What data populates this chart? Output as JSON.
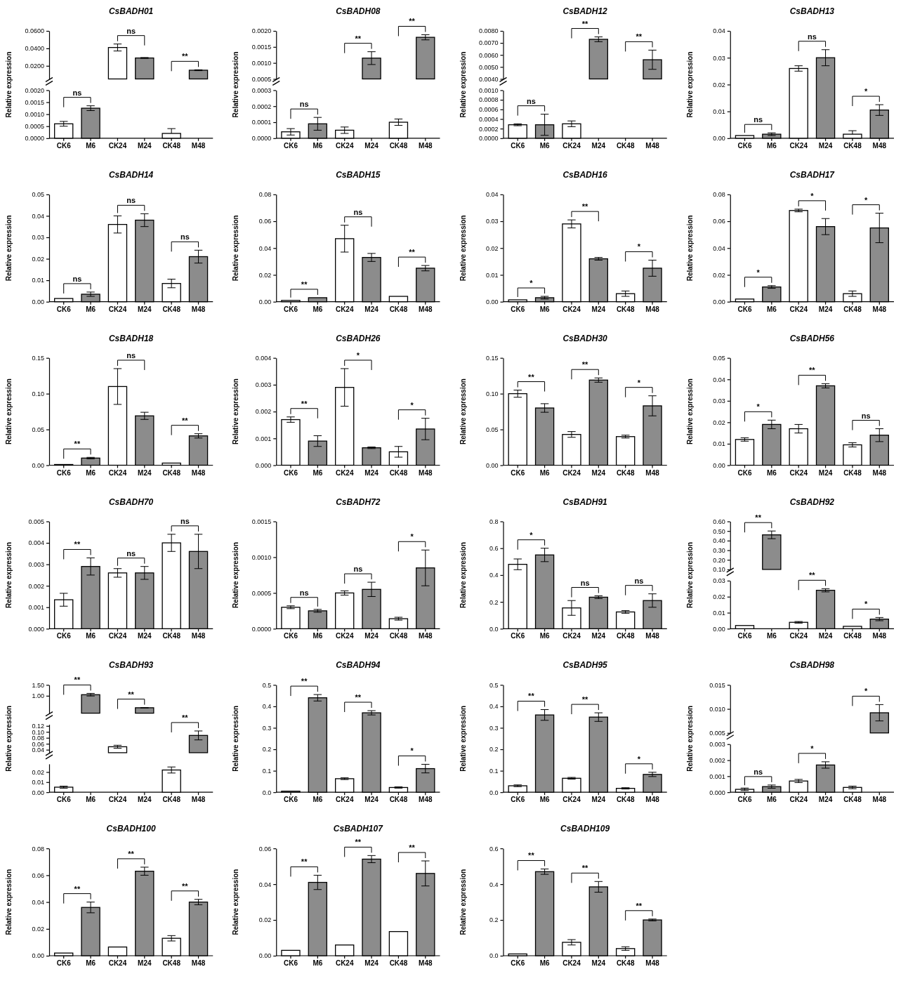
{
  "chart_data": [
    {
      "type": "bar",
      "title": "CsBADH01",
      "tick_labels": "y",
      "categories": [
        "CK6",
        "M6",
        "CK24",
        "M24",
        "CK48",
        "M48"
      ],
      "values": [
        null,
        null,
        0.041,
        0.029,
        null,
        0.015
      ],
      "errors": [
        null,
        null,
        0.004,
        0.0005,
        null,
        0.0005
      ],
      "colors": [
        null,
        null,
        "#ffffff",
        "#8c8c8c",
        null,
        "#8c8c8c"
      ],
      "ylim": [
        0.005,
        0.06
      ],
      "yticks": [
        {
          "value": 0.02,
          "label": "0.0200"
        },
        {
          "value": 0.04,
          "label": "0.0400"
        },
        {
          "value": 0.06,
          "label": "0.0600"
        }
      ]
    },
    {
      "type": "bar",
      "ylabel": "Relative expression",
      "categories": [
        "CK6",
        "M6",
        "CK24",
        "M24",
        "CK48",
        "M48"
      ],
      "values": [
        0.0006,
        0.00125,
        null,
        null,
        0.0002,
        null
      ],
      "errors": [
        0.0001,
        0.0001,
        null,
        null,
        [
          0.0002,
          0.0004
        ],
        null
      ],
      "colors": [
        "#ffffff",
        "#8c8c8c",
        null,
        null,
        "#ffffff",
        null
      ],
      "ylim": [
        0,
        0.002
      ],
      "yticks": [
        {
          "value": 0,
          "label": "0.0000"
        },
        {
          "value": 0.0005,
          "label": "0.0005"
        },
        {
          "value": 0.001,
          "label": "0.0010"
        },
        {
          "value": 0.0015,
          "label": "0.0015"
        },
        {
          "value": 0.002,
          "label": "0.0020"
        }
      ],
      "annotations": [
        "ns",
        "ns",
        "**"
      ]
    },
    {
      "type": "bar",
      "title": "CsBADH08",
      "tick_labels": "y",
      "categories": [
        "CK6",
        "M6",
        "CK24",
        "M24",
        "CK48",
        "M48"
      ],
      "values": [
        null,
        null,
        null,
        0.00115,
        null,
        0.0018
      ],
      "errors": [
        null,
        null,
        null,
        0.0002,
        null,
        8e-05
      ],
      "colors": [
        null,
        null,
        null,
        "#8c8c8c",
        null,
        "#8c8c8c"
      ],
      "ylim": [
        0.0005,
        0.002
      ],
      "yticks": [
        {
          "value": 0.0005,
          "label": "0.0005"
        },
        {
          "value": 0.001,
          "label": "0.0010"
        },
        {
          "value": 0.0015,
          "label": "0.0015"
        },
        {
          "value": 0.002,
          "label": "0.0020"
        }
      ]
    },
    {
      "type": "bar",
      "ylabel": "Relative expression",
      "categories": [
        "CK6",
        "M6",
        "CK24",
        "M24",
        "CK48",
        "M48"
      ],
      "values": [
        4e-05,
        9e-05,
        5e-05,
        null,
        0.0001,
        null
      ],
      "errors": [
        2e-05,
        4e-05,
        2e-05,
        null,
        2e-05,
        null
      ],
      "colors": [
        "#ffffff",
        "#8c8c8c",
        "#ffffff",
        null,
        "#ffffff",
        null
      ],
      "ylim": [
        0,
        0.0003
      ],
      "yticks": [
        {
          "value": 0,
          "label": "0.0000"
        },
        {
          "value": 0.0001,
          "label": "0.0001"
        },
        {
          "value": 0.0002,
          "label": "0.0002"
        },
        {
          "value": 0.0003,
          "label": "0.0003"
        }
      ],
      "annotations": [
        "ns",
        "**",
        "**"
      ]
    },
    {
      "type": "bar",
      "title": "CsBADH12",
      "tick_labels": "y",
      "categories": [
        "CK6",
        "M6",
        "CK24",
        "M24",
        "CK48",
        "M48"
      ],
      "values": [
        null,
        null,
        null,
        0.0073,
        null,
        0.0056
      ],
      "errors": [
        null,
        null,
        null,
        0.0002,
        null,
        0.0008
      ],
      "colors": [
        null,
        null,
        null,
        "#8c8c8c",
        null,
        "#8c8c8c"
      ],
      "ylim": [
        0.004,
        0.008
      ],
      "yticks": [
        {
          "value": 0.004,
          "label": "0.0040"
        },
        {
          "value": 0.005,
          "label": "0.0050"
        },
        {
          "value": 0.006,
          "label": "0.0060"
        },
        {
          "value": 0.007,
          "label": "0.0070"
        },
        {
          "value": 0.008,
          "label": "0.0080"
        }
      ]
    },
    {
      "type": "bar",
      "ylabel": "Relative expression",
      "categories": [
        "CK6",
        "M6",
        "CK24",
        "M24",
        "CK48",
        "M48"
      ],
      "values": [
        0.00028,
        0.00028,
        0.0003,
        null,
        0,
        null
      ],
      "errors": [
        2e-05,
        0.00022,
        6e-05,
        null,
        null,
        null
      ],
      "colors": [
        "#ffffff",
        "#8c8c8c",
        "#ffffff",
        null,
        "#ffffff",
        null
      ],
      "ylim": [
        0,
        0.001
      ],
      "yticks": [
        {
          "value": 0,
          "label": "0.0000"
        },
        {
          "value": 0.0002,
          "label": "0.0002"
        },
        {
          "value": 0.0004,
          "label": "0.0004"
        },
        {
          "value": 0.0006,
          "label": "0.0006"
        },
        {
          "value": 0.0008,
          "label": "0.0008"
        },
        {
          "value": 0.001,
          "label": "0.0010"
        }
      ],
      "annotations": [
        "ns",
        "**",
        "**"
      ]
    },
    {
      "type": "bar",
      "title": "CsBADH13",
      "ylabel": "Relative expression",
      "categories": [
        "CK6",
        "M6",
        "CK24",
        "M24",
        "CK48",
        "M48"
      ],
      "values": [
        0.001,
        0.0015,
        0.026,
        0.03,
        0.0015,
        0.0105
      ],
      "errors": [
        null,
        0.0005,
        0.001,
        0.003,
        [
          0.0015,
          0.0028
        ],
        0.002
      ],
      "colors": [
        "#ffffff",
        "#8c8c8c",
        "#ffffff",
        "#8c8c8c",
        "#ffffff",
        "#8c8c8c"
      ],
      "ylim": [
        0,
        0.04
      ],
      "yticks": [
        {
          "value": 0,
          "label": "0.00"
        },
        0.01,
        0.02,
        0.03,
        0.04
      ],
      "annotations": [
        "ns",
        "ns",
        "*"
      ]
    },
    {
      "type": "bar",
      "title": "CsBADH14",
      "ylabel": "Relative expression",
      "categories": [
        "CK6",
        "M6",
        "CK24",
        "M24",
        "CK48",
        "M48"
      ],
      "values": [
        0.0015,
        0.0035,
        0.036,
        0.038,
        0.0085,
        0.021
      ],
      "errors": [
        null,
        0.001,
        0.004,
        0.003,
        0.002,
        0.003
      ],
      "colors": [
        "#ffffff",
        "#8c8c8c",
        "#ffffff",
        "#8c8c8c",
        "#ffffff",
        "#8c8c8c"
      ],
      "ylim": [
        0,
        0.05
      ],
      "yticks": [
        {
          "value": 0,
          "label": "0.00"
        },
        0.01,
        0.02,
        0.03,
        0.04,
        0.05
      ],
      "annotations": [
        "ns",
        "ns",
        "ns"
      ]
    },
    {
      "type": "bar",
      "title": "CsBADH15",
      "ylabel": "Relative expression",
      "categories": [
        "CK6",
        "M6",
        "CK24",
        "M24",
        "CK48",
        "M48"
      ],
      "values": [
        0.001,
        0.003,
        0.047,
        0.033,
        0.004,
        0.025
      ],
      "errors": [
        null,
        null,
        0.01,
        0.003,
        null,
        0.002
      ],
      "colors": [
        "#ffffff",
        "#8c8c8c",
        "#ffffff",
        "#8c8c8c",
        "#ffffff",
        "#8c8c8c"
      ],
      "ylim": [
        0,
        0.08
      ],
      "yticks": [
        {
          "value": 0,
          "label": "0.00"
        },
        {
          "value": 0.02,
          "label": "0.02"
        },
        {
          "value": 0.04,
          "label": "0.04"
        },
        {
          "value": 0.06,
          "label": "0.06"
        },
        {
          "value": 0.08,
          "label": "0.08"
        }
      ],
      "annotations": [
        "**",
        "ns",
        "**"
      ]
    },
    {
      "type": "bar",
      "title": "CsBADH16",
      "ylabel": "Relative expression",
      "categories": [
        "CK6",
        "M6",
        "CK24",
        "M24",
        "CK48",
        "M48"
      ],
      "values": [
        0.0007,
        0.0015,
        0.029,
        0.016,
        0.003,
        0.0125
      ],
      "errors": [
        null,
        0.0005,
        0.0015,
        0.0005,
        0.001,
        0.003
      ],
      "colors": [
        "#ffffff",
        "#8c8c8c",
        "#ffffff",
        "#8c8c8c",
        "#ffffff",
        "#8c8c8c"
      ],
      "ylim": [
        0,
        0.04
      ],
      "yticks": [
        {
          "value": 0,
          "label": "0.00"
        },
        0.01,
        0.02,
        0.03,
        0.04
      ],
      "annotations": [
        "*",
        "**",
        "*"
      ]
    },
    {
      "type": "bar",
      "title": "CsBADH17",
      "ylabel": "Relative expression",
      "categories": [
        "CK6",
        "M6",
        "CK24",
        "M24",
        "CK48",
        "M48"
      ],
      "values": [
        0.002,
        0.011,
        0.068,
        0.056,
        0.006,
        0.055
      ],
      "errors": [
        null,
        0.001,
        0.001,
        0.006,
        0.002,
        0.011
      ],
      "colors": [
        "#ffffff",
        "#8c8c8c",
        "#ffffff",
        "#8c8c8c",
        "#ffffff",
        "#8c8c8c"
      ],
      "ylim": [
        0,
        0.08
      ],
      "yticks": [
        {
          "value": 0,
          "label": "0.00"
        },
        {
          "value": 0.02,
          "label": "0.02"
        },
        {
          "value": 0.04,
          "label": "0.04"
        },
        {
          "value": 0.06,
          "label": "0.06"
        },
        {
          "value": 0.08,
          "label": "0.08"
        }
      ],
      "annotations": [
        "*",
        "*",
        "*"
      ]
    },
    {
      "type": "bar",
      "title": "CsBADH18",
      "ylabel": "Relative expression",
      "categories": [
        "CK6",
        "M6",
        "CK24",
        "M24",
        "CK48",
        "M48"
      ],
      "values": [
        0.001,
        0.01,
        0.11,
        0.069,
        0.003,
        0.041
      ],
      "errors": [
        null,
        0.001,
        0.025,
        0.005,
        null,
        0.003
      ],
      "colors": [
        "#ffffff",
        "#8c8c8c",
        "#ffffff",
        "#8c8c8c",
        "#ffffff",
        "#8c8c8c"
      ],
      "ylim": [
        0,
        0.15
      ],
      "yticks": [
        {
          "value": 0,
          "label": "0.00"
        },
        0.05,
        {
          "value": 0.1,
          "label": "0.10"
        },
        0.15
      ],
      "annotations": [
        "**",
        "ns",
        "**"
      ]
    },
    {
      "type": "bar",
      "title": "CsBADH26",
      "ylabel": "Relative expression",
      "categories": [
        "CK6",
        "M6",
        "CK24",
        "M24",
        "CK48",
        "M48"
      ],
      "values": [
        0.0017,
        0.0009,
        0.0029,
        0.00065,
        0.0005,
        0.00135
      ],
      "errors": [
        0.0001,
        0.0002,
        0.0007,
        3e-05,
        0.0002,
        0.0004
      ],
      "colors": [
        "#ffffff",
        "#8c8c8c",
        "#ffffff",
        "#8c8c8c",
        "#ffffff",
        "#8c8c8c"
      ],
      "ylim": [
        0,
        0.004
      ],
      "yticks": [
        {
          "value": 0,
          "label": "0.000"
        },
        0.001,
        0.002,
        0.003,
        0.004
      ],
      "annotations": [
        "**",
        "*",
        "*"
      ]
    },
    {
      "type": "bar",
      "title": "CsBADH30",
      "ylabel": "Relative expression",
      "categories": [
        "CK6",
        "M6",
        "CK24",
        "M24",
        "CK48",
        "M48"
      ],
      "values": [
        0.1,
        0.08,
        0.043,
        0.119,
        0.04,
        0.083
      ],
      "errors": [
        0.005,
        0.006,
        0.004,
        0.003,
        0.002,
        0.014
      ],
      "colors": [
        "#ffffff",
        "#8c8c8c",
        "#ffffff",
        "#8c8c8c",
        "#ffffff",
        "#8c8c8c"
      ],
      "ylim": [
        0,
        0.15
      ],
      "yticks": [
        {
          "value": 0,
          "label": "0.00"
        },
        0.05,
        {
          "value": 0.1,
          "label": "0.10"
        },
        0.15
      ],
      "annotations": [
        "**",
        "**",
        "*"
      ]
    },
    {
      "type": "bar",
      "title": "CsBADH56",
      "ylabel": "Relative expression",
      "categories": [
        "CK6",
        "M6",
        "CK24",
        "M24",
        "CK48",
        "M48"
      ],
      "values": [
        0.012,
        0.019,
        0.017,
        0.037,
        0.0095,
        0.014
      ],
      "errors": [
        0.0008,
        0.002,
        0.002,
        0.001,
        0.001,
        0.003
      ],
      "colors": [
        "#ffffff",
        "#8c8c8c",
        "#ffffff",
        "#8c8c8c",
        "#ffffff",
        "#8c8c8c"
      ],
      "ylim": [
        0,
        0.05
      ],
      "yticks": [
        {
          "value": 0,
          "label": "0.00"
        },
        0.01,
        0.02,
        0.03,
        0.04,
        0.05
      ],
      "annotations": [
        "*",
        "**",
        "ns"
      ]
    },
    {
      "type": "bar",
      "title": "CsBADH70",
      "ylabel": "Relative expression",
      "categories": [
        "CK6",
        "M6",
        "CK24",
        "M24",
        "CK48",
        "M48"
      ],
      "values": [
        0.00135,
        0.0029,
        0.0026,
        0.0026,
        0.004,
        0.0036
      ],
      "errors": [
        0.0003,
        0.0004,
        0.0002,
        0.0003,
        0.0004,
        0.0008
      ],
      "colors": [
        "#ffffff",
        "#8c8c8c",
        "#ffffff",
        "#8c8c8c",
        "#ffffff",
        "#8c8c8c"
      ],
      "ylim": [
        0,
        0.005
      ],
      "yticks": [
        {
          "value": 0,
          "label": "0.000"
        },
        0.001,
        0.002,
        0.003,
        0.004,
        0.005
      ],
      "annotations": [
        "**",
        "ns",
        "ns"
      ]
    },
    {
      "type": "bar",
      "title": "CsBADH72",
      "ylabel": "Relative expression",
      "categories": [
        "CK6",
        "M6",
        "CK24",
        "M24",
        "CK48",
        "M48"
      ],
      "values": [
        0.0003,
        0.00025,
        0.0005,
        0.00055,
        0.00014,
        0.00085
      ],
      "errors": [
        2e-05,
        2e-05,
        3e-05,
        0.0001,
        2e-05,
        0.00025
      ],
      "colors": [
        "#ffffff",
        "#8c8c8c",
        "#ffffff",
        "#8c8c8c",
        "#ffffff",
        "#8c8c8c"
      ],
      "ylim": [
        0,
        0.0015
      ],
      "yticks": [
        {
          "value": 0,
          "label": "0.0000"
        },
        {
          "value": 0.0005,
          "label": "0.0005"
        },
        {
          "value": 0.001,
          "label": "0.0010"
        },
        {
          "value": 0.0015,
          "label": "0.0015"
        }
      ],
      "annotations": [
        "ns",
        "ns",
        "*"
      ]
    },
    {
      "type": "bar",
      "title": "CsBADH91",
      "ylabel": "Relative expression",
      "categories": [
        "CK6",
        "M6",
        "CK24",
        "M24",
        "CK48",
        "M48"
      ],
      "values": [
        0.48,
        0.55,
        0.155,
        0.235,
        0.125,
        0.21
      ],
      "errors": [
        0.04,
        0.05,
        0.055,
        0.01,
        0.01,
        0.05
      ],
      "colors": [
        "#ffffff",
        "#8c8c8c",
        "#ffffff",
        "#8c8c8c",
        "#ffffff",
        "#8c8c8c"
      ],
      "ylim": [
        0,
        0.8
      ],
      "yticks": [
        {
          "value": 0,
          "label": "0.0"
        },
        0.2,
        0.4,
        0.6,
        0.8
      ],
      "annotations": [
        "*",
        "ns",
        "ns"
      ]
    },
    {
      "type": "bar",
      "title": "CsBADH92",
      "tick_labels": "y",
      "categories": [
        "CK6",
        "M6",
        "CK24",
        "M24",
        "CK48",
        "M48"
      ],
      "values": [
        null,
        0.46,
        null,
        null,
        null,
        null
      ],
      "errors": [
        null,
        0.04,
        null,
        null,
        null,
        null
      ],
      "colors": [
        null,
        "#8c8c8c",
        null,
        null,
        null,
        null
      ],
      "ylim": [
        0.1,
        0.6
      ],
      "yticks": [
        {
          "value": 0.1,
          "label": "0.10"
        },
        {
          "value": 0.2,
          "label": "0.20"
        },
        {
          "value": 0.3,
          "label": "0.30"
        },
        {
          "value": 0.4,
          "label": "0.40"
        },
        {
          "value": 0.5,
          "label": "0.50"
        },
        {
          "value": 0.6,
          "label": "0.60"
        }
      ]
    },
    {
      "type": "bar",
      "ylabel": "Relative expression",
      "categories": [
        "CK6",
        "M6",
        "CK24",
        "M24",
        "CK48",
        "M48"
      ],
      "values": [
        0.002,
        null,
        0.004,
        0.024,
        0.0015,
        0.006
      ],
      "errors": [
        null,
        null,
        0.0005,
        0.001,
        null,
        0.001
      ],
      "colors": [
        "#ffffff",
        null,
        "#ffffff",
        "#8c8c8c",
        "#ffffff",
        "#8c8c8c"
      ],
      "ylim": [
        0,
        0.03
      ],
      "yticks": [
        {
          "value": 0,
          "label": "0.00"
        },
        0.01,
        0.02,
        {
          "value": 0.03,
          "label": "0.03"
        }
      ],
      "annotations": [
        "**",
        "**",
        "*"
      ]
    },
    {
      "type": "bar",
      "title": "CsBADH93",
      "tick_labels": "y",
      "categories": [
        "CK6",
        "M6",
        "CK24",
        "M24",
        "CK48",
        "M48"
      ],
      "values": [
        null,
        1.05,
        null,
        0.45,
        null,
        null
      ],
      "errors": [
        null,
        0.06,
        null,
        0.01,
        null,
        null
      ],
      "colors": [
        null,
        "#8c8c8c",
        null,
        "#8c8c8c",
        null,
        null
      ],
      "ylim": [
        0.2,
        1.5
      ],
      "yticks": [
        {
          "value": 1,
          "label": "1.00"
        },
        {
          "value": 1.5,
          "label": "1.50"
        }
      ]
    },
    {
      "type": "bar",
      "tick_labels": "y",
      "categories": [
        "CK6",
        "M6",
        "CK24",
        "M24",
        "CK48",
        "M48"
      ],
      "values": [
        null,
        null,
        0.05,
        null,
        null,
        0.088
      ],
      "errors": [
        null,
        null,
        0.005,
        null,
        null,
        0.015
      ],
      "colors": [
        null,
        null,
        "#ffffff",
        null,
        null,
        "#8c8c8c"
      ],
      "ylim": [
        0.03,
        0.125
      ],
      "yticks": [
        {
          "value": 0.04,
          "label": "0.04"
        },
        {
          "value": 0.06,
          "label": "0.06"
        },
        {
          "value": 0.08,
          "label": "0.08"
        },
        {
          "value": 0.1,
          "label": "0.10"
        },
        {
          "value": 0.12,
          "label": "0.12"
        }
      ]
    },
    {
      "type": "bar",
      "ylabel": "Relative expression",
      "categories": [
        "CK6",
        "M6",
        "CK24",
        "M24",
        "CK48",
        "M48"
      ],
      "values": [
        0.005,
        null,
        null,
        null,
        0.022,
        null
      ],
      "errors": [
        0.001,
        null,
        null,
        null,
        0.003,
        null
      ],
      "colors": [
        "#ffffff",
        null,
        null,
        null,
        "#ffffff",
        null
      ],
      "ylim": [
        0,
        0.028
      ],
      "yticks": [
        {
          "value": 0,
          "label": "0.00"
        },
        0.01,
        0.02
      ],
      "annotations": [
        "**",
        "**",
        "**"
      ]
    },
    {
      "type": "bar",
      "title": "CsBADH94",
      "ylabel": "Relative expression",
      "categories": [
        "CK6",
        "M6",
        "CK24",
        "M24",
        "CK48",
        "M48"
      ],
      "values": [
        0.005,
        0.44,
        0.063,
        0.37,
        0.022,
        0.11
      ],
      "errors": [
        null,
        0.015,
        0.004,
        0.01,
        0.003,
        0.02
      ],
      "colors": [
        "#ffffff",
        "#8c8c8c",
        "#ffffff",
        "#8c8c8c",
        "#ffffff",
        "#8c8c8c"
      ],
      "ylim": [
        0,
        0.5
      ],
      "yticks": [
        {
          "value": 0,
          "label": "0.0"
        },
        0.1,
        0.2,
        0.3,
        0.4,
        0.5
      ],
      "annotations": [
        "**",
        "**",
        "*"
      ]
    },
    {
      "type": "bar",
      "title": "CsBADH95",
      "ylabel": "Relative expression",
      "categories": [
        "CK6",
        "M6",
        "CK24",
        "M24",
        "CK48",
        "M48"
      ],
      "values": [
        0.03,
        0.36,
        0.065,
        0.35,
        0.018,
        0.083
      ],
      "errors": [
        0.004,
        0.025,
        0.004,
        0.02,
        0.003,
        0.01
      ],
      "colors": [
        "#ffffff",
        "#8c8c8c",
        "#ffffff",
        "#8c8c8c",
        "#ffffff",
        "#8c8c8c"
      ],
      "ylim": [
        0,
        0.5
      ],
      "yticks": [
        {
          "value": 0,
          "label": "0.0"
        },
        0.1,
        0.2,
        0.3,
        0.4,
        0.5
      ],
      "annotations": [
        "**",
        "**",
        "*"
      ]
    },
    {
      "type": "bar",
      "title": "CsBADH98",
      "tick_labels": "y",
      "categories": [
        "CK6",
        "M6",
        "CK24",
        "M24",
        "CK48",
        "M48"
      ],
      "values": [
        null,
        null,
        null,
        null,
        null,
        0.0092
      ],
      "errors": [
        null,
        null,
        null,
        null,
        null,
        0.0017
      ],
      "colors": [
        null,
        null,
        null,
        null,
        null,
        "#8c8c8c"
      ],
      "ylim": [
        0.005,
        0.015
      ],
      "yticks": [
        {
          "value": 0.005,
          "label": "0.005"
        },
        {
          "value": 0.01,
          "label": "0.010"
        },
        {
          "value": 0.015,
          "label": "0.015"
        }
      ]
    },
    {
      "type": "bar",
      "ylabel": "Relative expression",
      "categories": [
        "CK6",
        "M6",
        "CK24",
        "M24",
        "CK48",
        "M48"
      ],
      "values": [
        0.00018,
        0.00035,
        0.0007,
        0.0017,
        0.0003,
        null
      ],
      "errors": [
        8e-05,
        0.0001,
        0.0001,
        0.0002,
        8e-05,
        null
      ],
      "colors": [
        "#ffffff",
        "#8c8c8c",
        "#ffffff",
        "#8c8c8c",
        "#ffffff",
        null
      ],
      "ylim": [
        0,
        0.003
      ],
      "yticks": [
        {
          "value": 0,
          "label": "0.000"
        },
        0.001,
        0.002,
        0.003
      ],
      "annotations": [
        "ns",
        "*",
        "*"
      ]
    },
    {
      "type": "bar",
      "title": "CsBADH100",
      "ylabel": "Relative expression",
      "categories": [
        "CK6",
        "M6",
        "CK24",
        "M24",
        "CK48",
        "M48"
      ],
      "values": [
        0.002,
        0.036,
        0.0065,
        0.063,
        0.013,
        0.04
      ],
      "errors": [
        null,
        0.004,
        null,
        0.003,
        0.002,
        0.002
      ],
      "colors": [
        "#ffffff",
        "#8c8c8c",
        "#ffffff",
        "#8c8c8c",
        "#ffffff",
        "#8c8c8c"
      ],
      "ylim": [
        0,
        0.08
      ],
      "yticks": [
        {
          "value": 0,
          "label": "0.00"
        },
        {
          "value": 0.02,
          "label": "0.02"
        },
        {
          "value": 0.04,
          "label": "0.04"
        },
        {
          "value": 0.06,
          "label": "0.06"
        },
        {
          "value": 0.08,
          "label": "0.08"
        }
      ],
      "annotations": [
        "**",
        "**",
        "**"
      ]
    },
    {
      "type": "bar",
      "title": "CsBADH107",
      "ylabel": "Relative expression",
      "categories": [
        "CK6",
        "M6",
        "CK24",
        "M24",
        "CK48",
        "M48"
      ],
      "values": [
        0.003,
        0.041,
        0.006,
        0.054,
        0.0135,
        0.046
      ],
      "errors": [
        null,
        0.004,
        null,
        0.002,
        null,
        0.007
      ],
      "colors": [
        "#ffffff",
        "#8c8c8c",
        "#ffffff",
        "#8c8c8c",
        "#ffffff",
        "#8c8c8c"
      ],
      "ylim": [
        0,
        0.06
      ],
      "yticks": [
        {
          "value": 0,
          "label": "0.00"
        },
        {
          "value": 0.02,
          "label": "0.02"
        },
        {
          "value": 0.04,
          "label": "0.04"
        },
        {
          "value": 0.06,
          "label": "0.06"
        }
      ],
      "annotations": [
        "**",
        "**",
        "**"
      ]
    },
    {
      "type": "bar",
      "title": "CsBADH109",
      "ylabel": "Relative expression",
      "categories": [
        "CK6",
        "M6",
        "CK24",
        "M24",
        "CK48",
        "M48"
      ],
      "values": [
        0.01,
        0.47,
        0.075,
        0.385,
        0.04,
        0.2
      ],
      "errors": [
        null,
        0.015,
        0.015,
        0.03,
        0.01,
        0.005
      ],
      "colors": [
        "#ffffff",
        "#8c8c8c",
        "#ffffff",
        "#8c8c8c",
        "#ffffff",
        "#8c8c8c"
      ],
      "ylim": [
        0,
        0.6
      ],
      "yticks": [
        {
          "value": 0,
          "label": "0.0"
        },
        0.2,
        0.4,
        0.6
      ],
      "annotations": [
        "**",
        "**",
        "**"
      ]
    }
  ]
}
